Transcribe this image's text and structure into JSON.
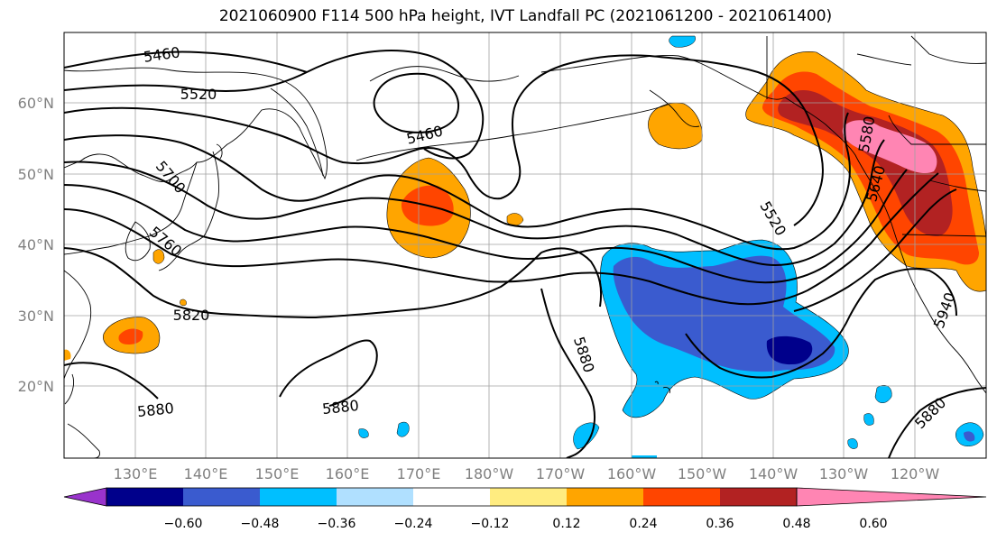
{
  "title": "2021060900 F114 500 hPa height, IVT Landfall PC (2021061200 - 2021061400)",
  "lat_labels": [
    "60°N",
    "50°N",
    "40°N",
    "30°N",
    "20°N"
  ],
  "lon_labels": [
    "130°E",
    "140°E",
    "150°E",
    "160°E",
    "170°E",
    "180°W",
    "170°W",
    "160°W",
    "150°W",
    "140°W",
    "130°W",
    "120°W"
  ],
  "contour_labels": {
    "c5460_a": "5460",
    "c5520_a": "5520",
    "c5460_b": "5460",
    "c5700": "5700",
    "c5760": "5760",
    "c5820": "5820",
    "c5880_a": "5880",
    "c5880_b": "5880",
    "c5880_c": "5880",
    "c5520_b": "5520",
    "c5580": "5580",
    "c5640": "5640",
    "c5940": "5940",
    "c5880_d": "5880"
  },
  "colorbar": {
    "colors": [
      "#9933cc",
      "#00008b",
      "#3a5bcf",
      "#00bfff",
      "#b0e0ff",
      "#ffffff",
      "#ffec80",
      "#ffa500",
      "#ff4500",
      "#b22222",
      "#ff85b3"
    ],
    "ticks": [
      "−0.60",
      "−0.48",
      "−0.36",
      "−0.24",
      "−0.12",
      "0.12",
      "0.24",
      "0.36",
      "0.48",
      "0.60"
    ]
  }
}
